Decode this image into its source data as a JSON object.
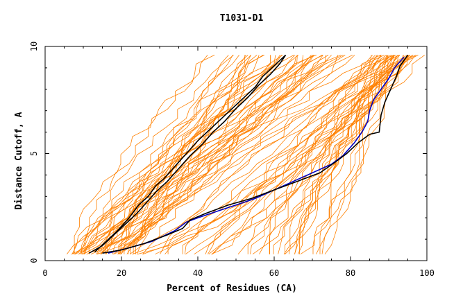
{
  "chart_data": {
    "type": "line",
    "title": "T1031-D1",
    "xlabel": "Percent of Residues (CA)",
    "ylabel": "Distance Cutoff, A",
    "xlim": [
      0,
      100
    ],
    "ylim": [
      0,
      10
    ],
    "x_ticks": [
      "0",
      "20",
      "40",
      "60",
      "80",
      "100"
    ],
    "y_ticks": [
      "0",
      "5",
      "10"
    ],
    "grid": false,
    "legend": "none",
    "colors": {
      "background_models": "#ff8000",
      "highlight_black": "#000000",
      "highlight_blue": "#0000c8"
    },
    "background_model_count": 90,
    "background_group_left": {
      "start_x_range": [
        5,
        22
      ],
      "end_x_range": [
        42,
        82
      ],
      "y_range": [
        0.3,
        9.6
      ]
    },
    "background_group_right": {
      "start_x_range": [
        18,
        72
      ],
      "end_x_range": [
        86,
        100
      ],
      "y_range": [
        0.3,
        9.6
      ]
    },
    "series": [
      {
        "color": "#000000",
        "x": [
          11.5,
          15.0,
          18.0,
          21.0,
          24.0,
          26.5,
          29.0,
          32.0,
          35.0,
          38.0,
          41.0,
          44.0,
          47.0,
          50.0,
          53.0,
          56.0,
          59.0,
          61.5,
          63.0
        ],
        "y": [
          0.35,
          0.7,
          1.2,
          1.7,
          2.2,
          2.7,
          3.2,
          3.7,
          4.3,
          4.9,
          5.4,
          6.0,
          6.5,
          7.1,
          7.6,
          8.2,
          8.7,
          9.2,
          9.6
        ]
      },
      {
        "color": "#000000",
        "x": [
          13.0,
          16.0,
          19.0,
          22.0,
          24.5,
          27.0,
          29.0,
          31.0,
          34.0,
          37.0,
          40.0,
          43.0,
          46.0,
          49.0,
          52.0,
          55.0,
          57.0,
          60.0,
          63.0
        ],
        "y": [
          0.4,
          0.9,
          1.4,
          2.0,
          2.6,
          3.0,
          3.5,
          3.8,
          4.4,
          5.0,
          5.6,
          6.1,
          6.6,
          7.1,
          7.6,
          8.1,
          8.6,
          9.1,
          9.6
        ]
      },
      {
        "color": "#0000c8",
        "x": [
          16.5,
          22.0,
          28.0,
          34.0,
          37.0,
          40.0,
          45.0,
          50.0,
          55.0,
          60.0,
          65.0,
          70.0,
          75.0,
          78.0,
          81.0,
          83.0,
          84.5,
          85.0,
          86.0,
          88.0,
          90.0,
          91.5,
          94.0
        ],
        "y": [
          0.35,
          0.6,
          0.9,
          1.4,
          1.8,
          2.0,
          2.3,
          2.6,
          2.9,
          3.3,
          3.7,
          4.1,
          4.5,
          4.9,
          5.5,
          6.0,
          6.5,
          7.0,
          7.5,
          8.0,
          8.5,
          9.0,
          9.5
        ]
      },
      {
        "color": "#000000",
        "x": [
          15.0,
          20.0,
          26.0,
          32.0,
          36.0,
          38.0,
          42.0,
          48.0,
          54.0,
          60.0,
          66.0,
          72.0,
          76.0,
          79.0,
          82.0,
          85.0,
          87.5,
          88.0,
          89.0,
          90.5,
          92.0,
          93.0,
          95.0
        ],
        "y": [
          0.35,
          0.5,
          0.8,
          1.2,
          1.5,
          1.9,
          2.2,
          2.6,
          2.9,
          3.3,
          3.7,
          4.1,
          4.6,
          5.0,
          5.5,
          5.9,
          6.0,
          6.8,
          7.4,
          8.0,
          8.6,
          9.1,
          9.6
        ]
      }
    ]
  }
}
